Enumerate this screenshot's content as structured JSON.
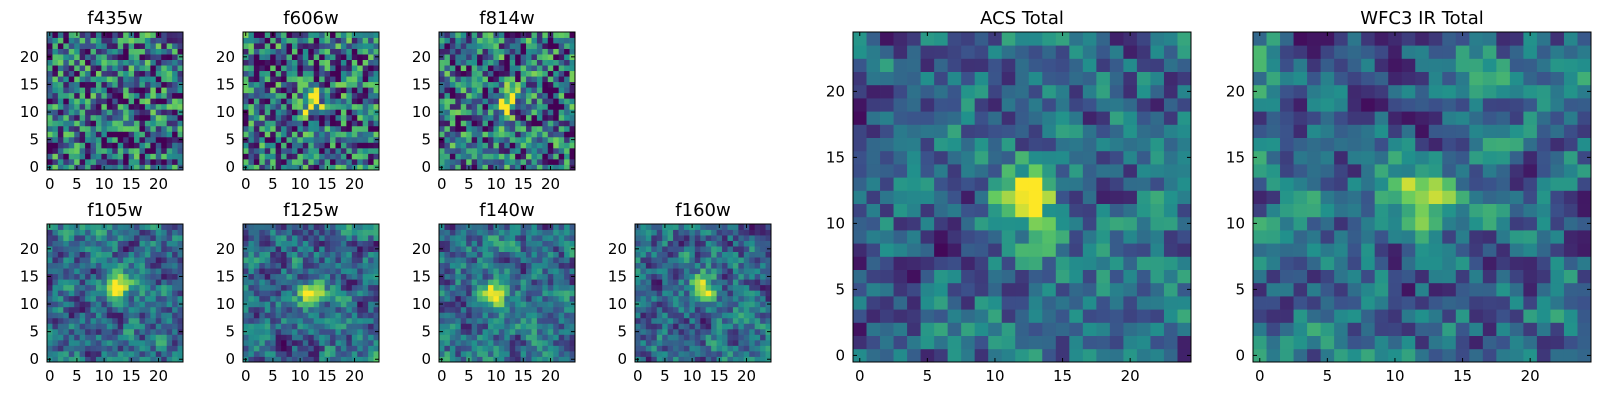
{
  "palette": {
    "low": "#440154",
    "mid": "#21918c",
    "high": "#fde725"
  },
  "chart_data": [
    {
      "type": "heatmap",
      "title": "f435w",
      "grid": false,
      "nx": 25,
      "ny": 25,
      "x": [
        0,
        24
      ],
      "y": [
        0,
        24
      ],
      "xticks": [
        0,
        5,
        10,
        15,
        20
      ],
      "yticks": [
        0,
        5,
        10,
        15,
        20
      ],
      "bright_spot": null
    },
    {
      "type": "heatmap",
      "title": "f606w",
      "grid": false,
      "nx": 25,
      "ny": 25,
      "x": [
        0,
        24
      ],
      "y": [
        0,
        24
      ],
      "xticks": [
        0,
        5,
        10,
        15,
        20
      ],
      "yticks": [
        0,
        5,
        10,
        15,
        20
      ],
      "bright_spot": [
        12,
        12
      ]
    },
    {
      "type": "heatmap",
      "title": "f814w",
      "grid": false,
      "nx": 25,
      "ny": 25,
      "x": [
        0,
        24
      ],
      "y": [
        0,
        24
      ],
      "xticks": [
        0,
        5,
        10,
        15,
        20
      ],
      "yticks": [
        0,
        5,
        10,
        15,
        20
      ],
      "bright_spot": [
        12,
        12
      ]
    },
    {
      "type": "heatmap",
      "title": "f105w",
      "grid": false,
      "nx": 25,
      "ny": 25,
      "x": [
        0,
        24
      ],
      "y": [
        0,
        24
      ],
      "xticks": [
        0,
        5,
        10,
        15,
        20
      ],
      "yticks": [
        0,
        5,
        10,
        15,
        20
      ],
      "bright_spot": [
        13,
        13
      ]
    },
    {
      "type": "heatmap",
      "title": "f125w",
      "grid": false,
      "nx": 25,
      "ny": 25,
      "x": [
        0,
        24
      ],
      "y": [
        0,
        24
      ],
      "xticks": [
        0,
        5,
        10,
        15,
        20
      ],
      "yticks": [
        0,
        5,
        10,
        15,
        20
      ],
      "bright_spot": [
        12,
        12
      ]
    },
    {
      "type": "heatmap",
      "title": "f140w",
      "grid": false,
      "nx": 25,
      "ny": 25,
      "x": [
        0,
        24
      ],
      "y": [
        0,
        24
      ],
      "xticks": [
        0,
        5,
        10,
        15,
        20
      ],
      "yticks": [
        0,
        5,
        10,
        15,
        20
      ],
      "bright_spot": [
        10,
        12
      ]
    },
    {
      "type": "heatmap",
      "title": "f160w",
      "grid": false,
      "nx": 25,
      "ny": 25,
      "x": [
        0,
        24
      ],
      "y": [
        0,
        24
      ],
      "xticks": [
        0,
        5,
        10,
        15,
        20
      ],
      "yticks": [
        0,
        5,
        10,
        15,
        20
      ],
      "bright_spot": [
        12,
        13
      ]
    },
    {
      "type": "heatmap",
      "title": "ACS Total",
      "grid": false,
      "nx": 25,
      "ny": 25,
      "x": [
        0,
        24
      ],
      "y": [
        0,
        24
      ],
      "xticks": [
        0,
        5,
        10,
        15,
        20
      ],
      "yticks": [
        0,
        5,
        10,
        15,
        20
      ],
      "bright_spot": [
        12,
        12
      ]
    },
    {
      "type": "heatmap",
      "title": "WFC3 IR Total",
      "grid": false,
      "nx": 25,
      "ny": 25,
      "x": [
        0,
        24
      ],
      "y": [
        0,
        24
      ],
      "xticks": [
        0,
        5,
        10,
        15,
        20
      ],
      "yticks": [
        0,
        5,
        10,
        15,
        20
      ],
      "bright_spot": [
        12,
        12
      ]
    }
  ]
}
